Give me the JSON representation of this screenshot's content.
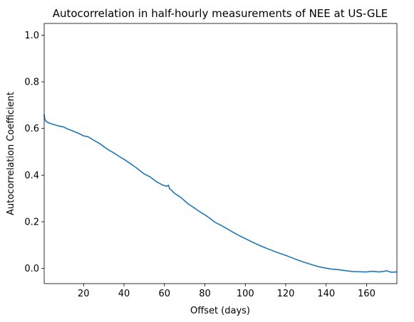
{
  "chart_data": {
    "type": "line",
    "title": "Autocorrelation in half-hourly measurements of NEE at US-GLE",
    "xlabel": "Offset (days)",
    "ylabel": "Autocorrelation Coefficient",
    "xlim": [
      0.5,
      175
    ],
    "ylim": [
      -0.065,
      1.05
    ],
    "xticks": [
      20,
      40,
      60,
      80,
      100,
      120,
      140,
      160
    ],
    "yticks": [
      0.0,
      0.2,
      0.4,
      0.6,
      0.8,
      1.0
    ],
    "ytick_labels": [
      "0.0",
      "0.2",
      "0.4",
      "0.6",
      "0.8",
      "1.0"
    ],
    "grid": false,
    "series": [
      {
        "color": "#1f77b4",
        "x": [
          0.5,
          0.8,
          1.2,
          2,
          4,
          6,
          8,
          10,
          12,
          15,
          18,
          20,
          22,
          25,
          28,
          30,
          32,
          35,
          38,
          40,
          43,
          46,
          50,
          53,
          56,
          59,
          61,
          62,
          62.5,
          63.5,
          65,
          68,
          70,
          72,
          75,
          78,
          80,
          82,
          85,
          88,
          90,
          93,
          96,
          100,
          103,
          106,
          110,
          113,
          116,
          120,
          123,
          126,
          130,
          133,
          136,
          140,
          143,
          146,
          150,
          153,
          156,
          160,
          163,
          166,
          168,
          170,
          172,
          175
        ],
        "y": [
          0.66,
          0.64,
          0.633,
          0.627,
          0.62,
          0.615,
          0.61,
          0.607,
          0.598,
          0.588,
          0.577,
          0.568,
          0.565,
          0.55,
          0.535,
          0.522,
          0.51,
          0.495,
          0.478,
          0.468,
          0.45,
          0.432,
          0.405,
          0.392,
          0.372,
          0.358,
          0.352,
          0.357,
          0.342,
          0.335,
          0.322,
          0.305,
          0.29,
          0.275,
          0.258,
          0.24,
          0.23,
          0.218,
          0.198,
          0.185,
          0.175,
          0.16,
          0.145,
          0.128,
          0.115,
          0.103,
          0.088,
          0.078,
          0.068,
          0.056,
          0.046,
          0.036,
          0.024,
          0.016,
          0.008,
          0.001,
          -0.003,
          -0.005,
          -0.01,
          -0.013,
          -0.014,
          -0.015,
          -0.012,
          -0.015,
          -0.013,
          -0.01,
          -0.016,
          -0.015
        ]
      }
    ]
  }
}
